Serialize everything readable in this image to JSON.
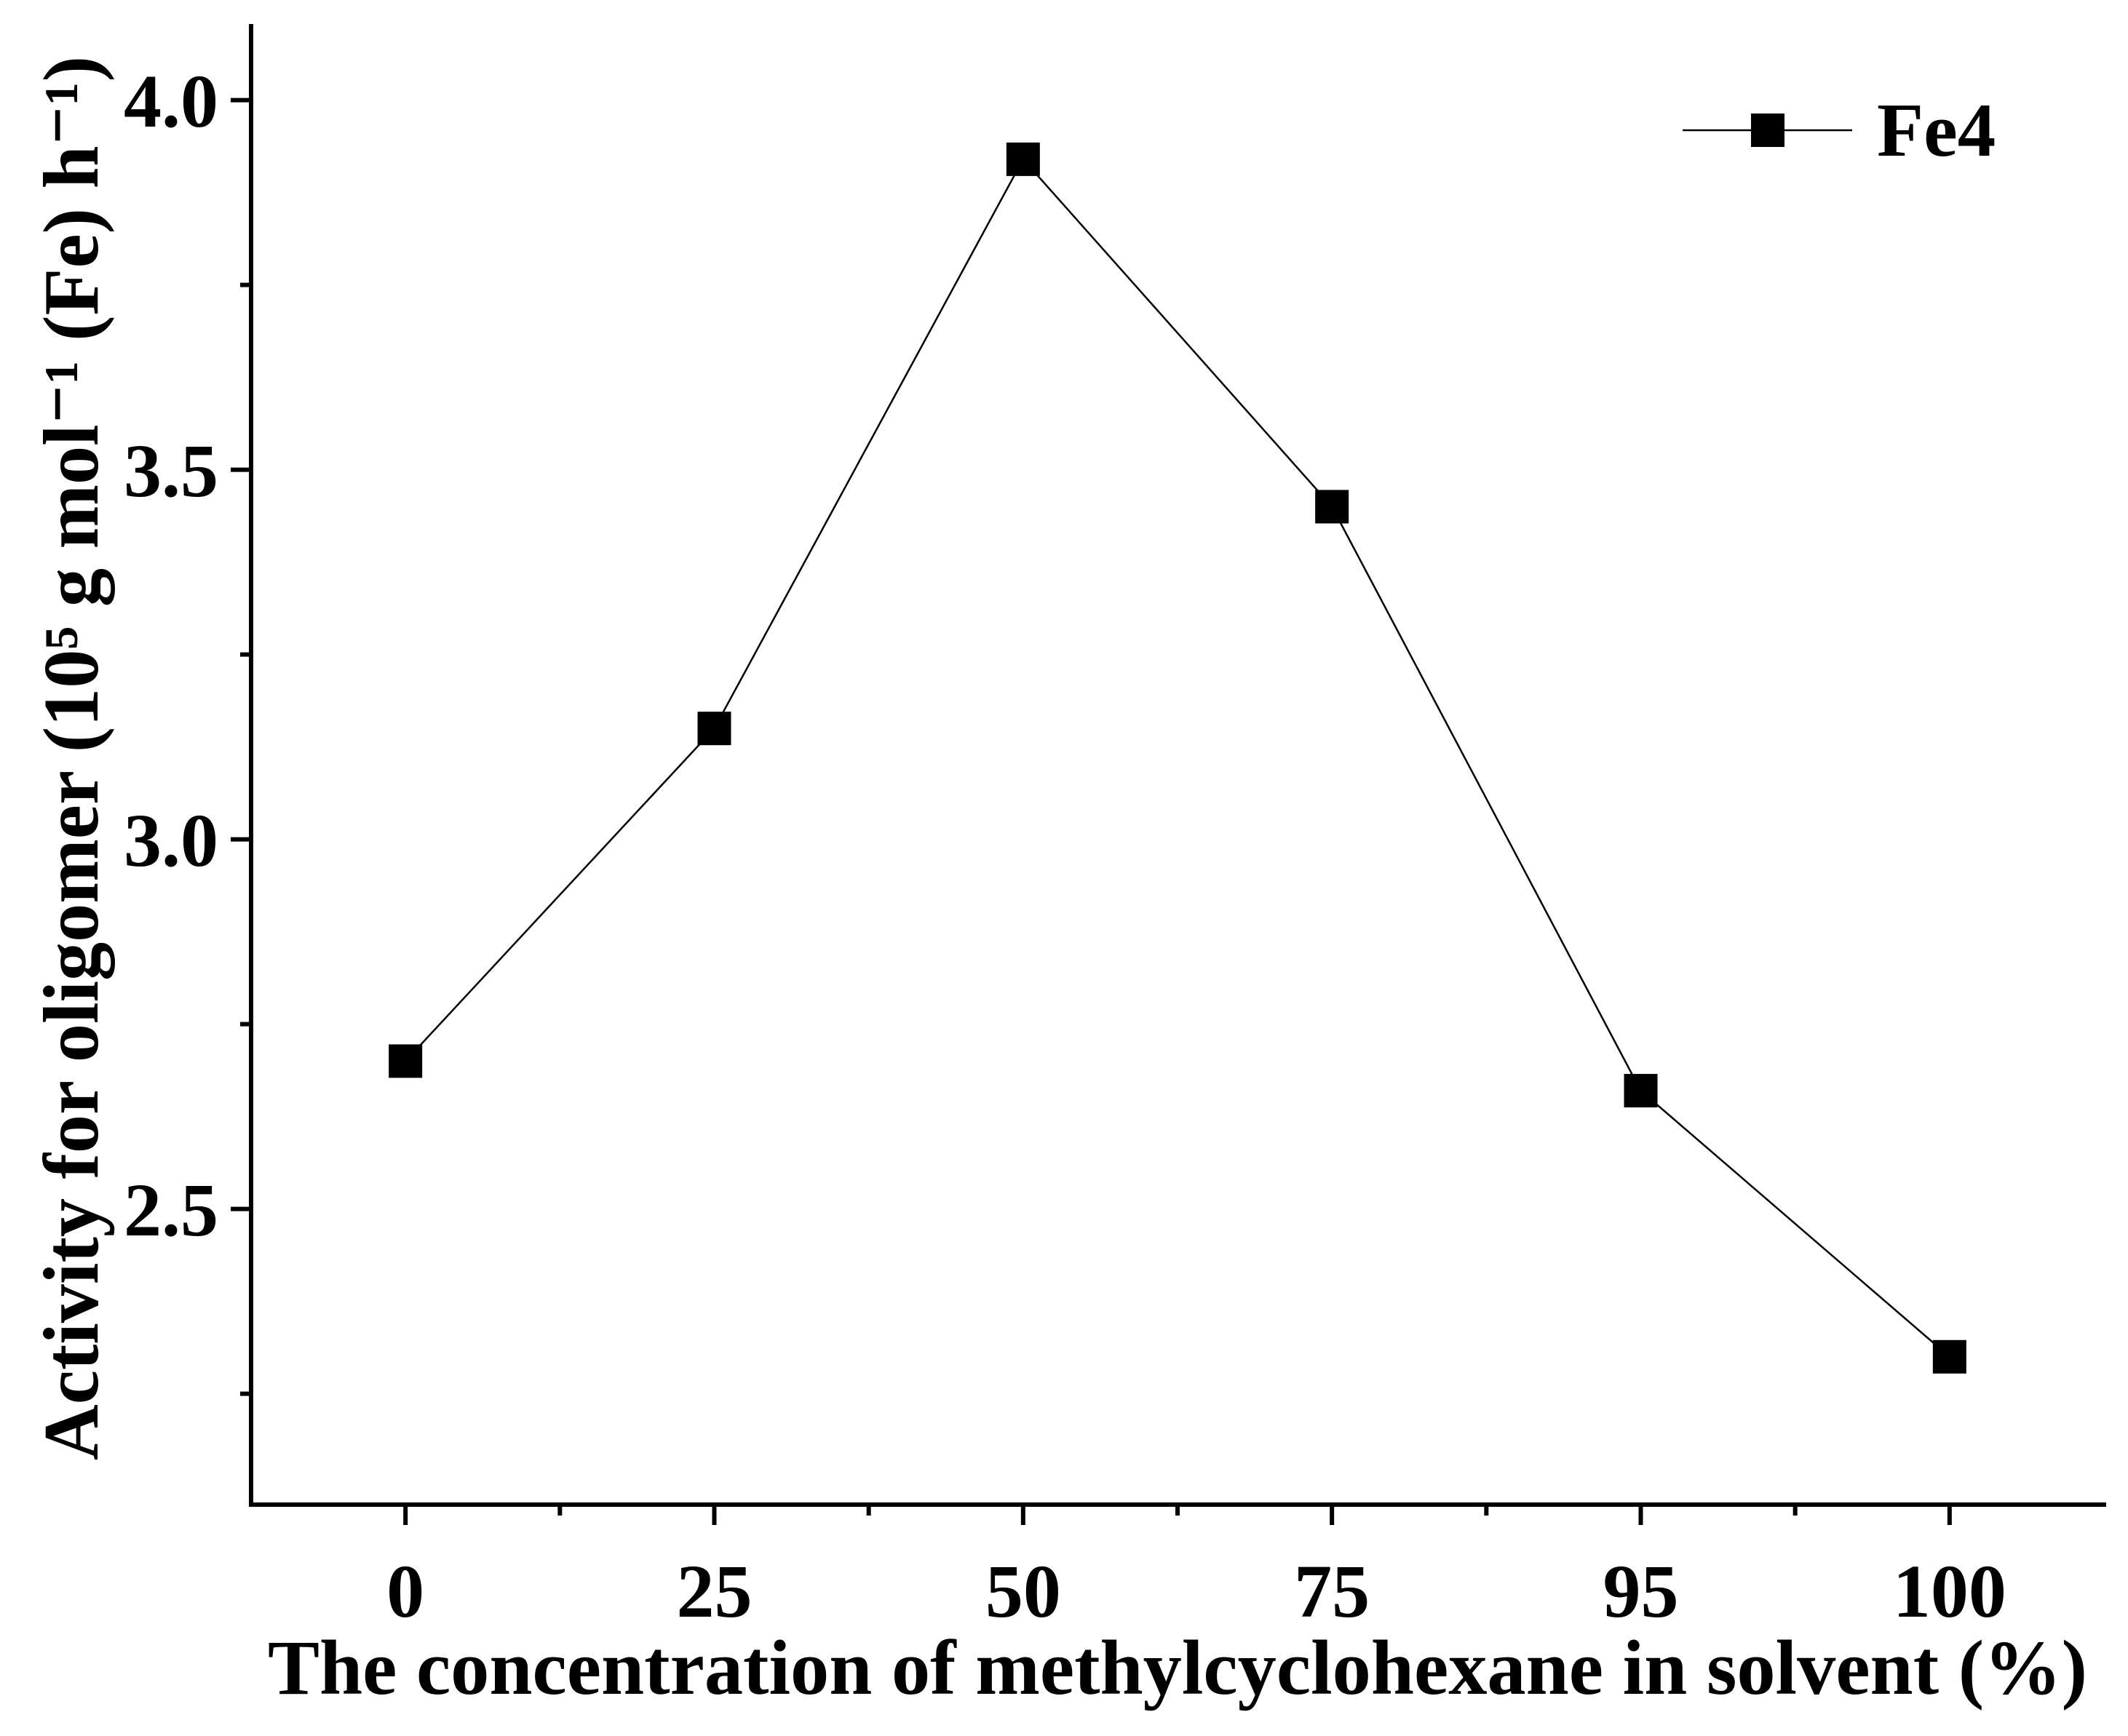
{
  "chart_data": {
    "type": "line",
    "categories": [
      "0",
      "25",
      "50",
      "75",
      "95",
      "100"
    ],
    "series": [
      {
        "name": "Fe4",
        "values": [
          2.7,
          3.15,
          3.92,
          3.45,
          2.66,
          2.3
        ],
        "marker": "square",
        "color": "#000000"
      }
    ],
    "xlabel": "The concentration of methylcyclohexane in solvent (%)",
    "ylabel": "Activity for oligomer (10⁵ g mol⁻¹ (Fe) h⁻¹)",
    "ylim": [
      2.1,
      4.1
    ],
    "yticks": [
      {
        "value": 2.5,
        "label": "2.5"
      },
      {
        "value": 3.0,
        "label": "3.0"
      },
      {
        "value": 3.5,
        "label": "3.5"
      },
      {
        "value": 4.0,
        "label": "4.0"
      }
    ],
    "yminor_ticks": [
      2.25,
      2.75,
      3.25,
      3.75
    ],
    "grid": false,
    "legend": {
      "position": "top-right"
    }
  }
}
